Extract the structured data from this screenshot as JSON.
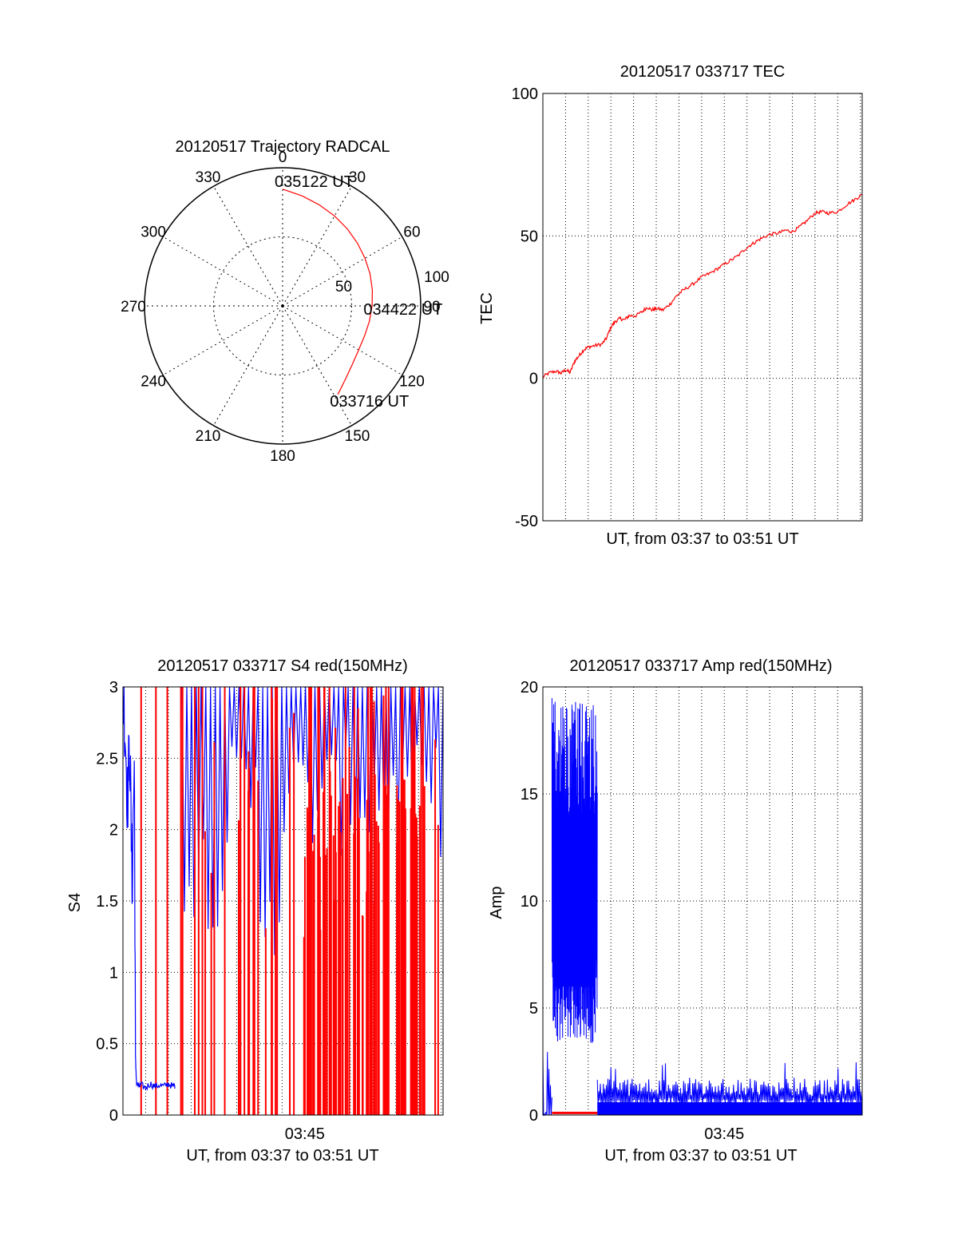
{
  "chart_data": [
    {
      "id": "trajectory",
      "type": "polar",
      "title": "20120517 Trajectory RADCAL",
      "angle_labels": [
        "0",
        "30",
        "60",
        "90",
        "120",
        "150",
        "180",
        "210",
        "240",
        "270",
        "300",
        "330"
      ],
      "radial_tick_labels": [
        "50",
        "100"
      ],
      "rlim": [
        0,
        100
      ],
      "grid": true,
      "series": [
        {
          "color": "#ff0000",
          "points": [
            {
              "az": 0,
              "r": 84.5
            },
            {
              "az": 10,
              "r": 80.9
            },
            {
              "az": 20,
              "r": 77.8
            },
            {
              "az": 30,
              "r": 75.2
            },
            {
              "az": 40,
              "r": 72.8
            },
            {
              "az": 50,
              "r": 70.7
            },
            {
              "az": 60,
              "r": 68.9
            },
            {
              "az": 70,
              "r": 67.4
            },
            {
              "az": 80,
              "r": 66.0
            },
            {
              "az": 90,
              "r": 64.8
            },
            {
              "az": 100,
              "r": 63.8
            },
            {
              "az": 110,
              "r": 63.2
            },
            {
              "az": 120,
              "r": 63.6
            },
            {
              "az": 130,
              "r": 65.9
            },
            {
              "az": 140,
              "r": 70.2
            },
            {
              "az": 148,
              "r": 75.5
            }
          ]
        }
      ],
      "annotations": [
        {
          "text": "035122 UT",
          "az": 0,
          "r": 84.5
        },
        {
          "text": "034422 UT",
          "az": 93,
          "r": 64.5
        },
        {
          "text": "033716 UT",
          "az": 148,
          "r": 75.5
        }
      ]
    },
    {
      "id": "tec",
      "type": "line",
      "title": "20120517 033717 TEC",
      "xlabel": "UT, from 03:37 to 03:51 UT",
      "ylabel": "TEC",
      "xlim_minutes": [
        0,
        14.08
      ],
      "ylim": [
        -50,
        100
      ],
      "yticks": [
        "-50",
        "0",
        "50",
        "100"
      ],
      "grid": true,
      "series": [
        {
          "color": "#ff0000",
          "x_minutes": [
            0,
            0.3,
            0.6,
            0.8,
            1.0,
            1.2,
            1.4,
            1.6,
            1.8,
            2.0,
            2.3,
            2.6,
            2.8,
            3.0,
            3.2,
            3.4,
            3.6,
            3.8,
            4.1,
            4.4,
            4.6,
            4.8,
            5.0,
            5.3,
            5.6,
            5.9,
            6.2,
            6.6,
            7.0,
            7.4,
            7.8,
            8.2,
            8.6,
            9.0,
            9.3,
            9.6,
            10.0,
            10.4,
            10.7,
            11.0,
            11.3,
            11.6,
            12.0,
            12.3,
            12.6,
            13.0,
            13.4,
            13.8,
            14.08
          ],
          "values": [
            0.5,
            2,
            2.5,
            1.8,
            3,
            2,
            6,
            8,
            10,
            11,
            11.5,
            12,
            14,
            18,
            20,
            21,
            20.5,
            22,
            22,
            23.5,
            25,
            24,
            24.5,
            24,
            26,
            29,
            31,
            33,
            35.5,
            37,
            39,
            41,
            43,
            46,
            47.5,
            49,
            50.5,
            51,
            52,
            51.5,
            53,
            55,
            58,
            58.5,
            58,
            58.5,
            61,
            63,
            64.5
          ]
        }
      ]
    },
    {
      "id": "s4",
      "type": "line",
      "title": "20120517 033717 S4 red(150MHz)",
      "xlabel": "UT, from 03:37 to 03:51 UT",
      "ylabel": "S4",
      "xtick_labels": [
        "03:45"
      ],
      "xlim_minutes": [
        0,
        14.08
      ],
      "ylim": [
        0,
        3
      ],
      "yticks": [
        "0",
        "0.5",
        "1",
        "1.5",
        "2",
        "2.5",
        "3"
      ],
      "grid": true,
      "series": [
        {
          "color": "#0000ff",
          "x_minutes": [
            0,
            0.1,
            0.2,
            0.3,
            0.4,
            0.5,
            0.55,
            0.6,
            0.7,
            0.8,
            1.0,
            1.2,
            1.4,
            1.6,
            1.8,
            2.0,
            2.2,
            2.3
          ],
          "values": [
            3.0,
            2.7,
            2.2,
            2.6,
            1.6,
            2.5,
            0.4,
            0.22,
            0.2,
            0.21,
            0.19,
            0.22,
            0.2,
            0.21,
            0.2,
            0.22,
            0.2,
            0.21
          ]
        }
      ],
      "bursts": [
        {
          "color": "#0000ff",
          "x_minutes_start": 2.6,
          "x_minutes_end": 14.08,
          "min_low": 1.1,
          "max": 3.0,
          "segments": 110
        },
        {
          "color": "#ff0000",
          "x_minutes_start": 2.6,
          "x_minutes_end": 14.08,
          "min": 0.0,
          "max": 3.0,
          "segments": 70
        }
      ],
      "vertical_red_lines_minutes": [
        0.8,
        1.45,
        1.95,
        2.55
      ]
    },
    {
      "id": "amp",
      "type": "line",
      "title": "20120517 033717 Amp red(150MHz)",
      "xlabel": "UT, from 03:37 to 03:51 UT",
      "ylabel": "Amp",
      "xtick_labels": [
        "03:45"
      ],
      "xlim_minutes": [
        0,
        14.08
      ],
      "ylim": [
        0,
        20
      ],
      "yticks": [
        "0",
        "5",
        "10",
        "15",
        "20"
      ],
      "grid": true,
      "bursts": [
        {
          "color": "#0000ff",
          "x_minutes_start": 0.0,
          "x_minutes_end": 0.4,
          "min": 0.0,
          "max": 3.3,
          "segments": 12
        },
        {
          "color": "#0000ff",
          "x_minutes_start": 0.4,
          "x_minutes_end": 2.4,
          "min": 3.2,
          "max": 19.5,
          "segments": 200
        },
        {
          "color": "#0000ff",
          "x_minutes_start": 2.4,
          "x_minutes_end": 14.08,
          "min": 0.3,
          "max": 2.6,
          "segments": 350
        }
      ],
      "red_baseline": {
        "color": "#ff0000",
        "x_minutes_start": 0.4,
        "x_minutes_end": 2.4,
        "value": 0.1
      }
    }
  ]
}
